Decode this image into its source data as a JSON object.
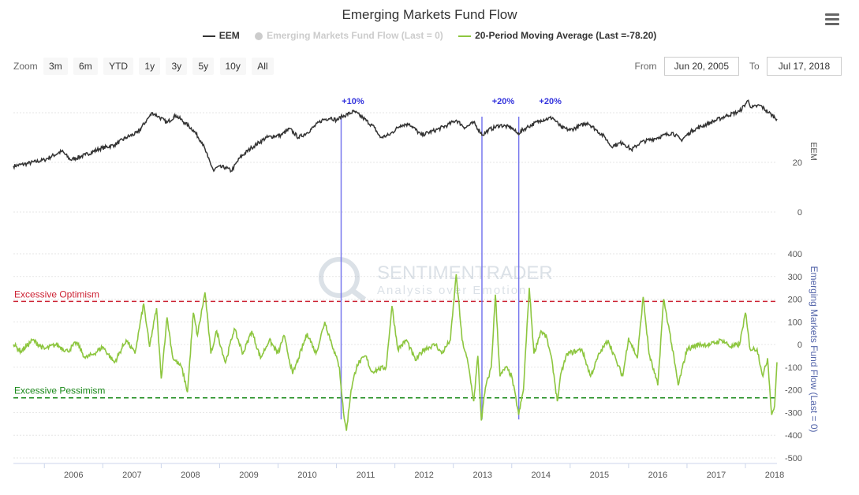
{
  "title": "Emerging Markets Fund Flow",
  "legend": [
    {
      "name": "EEM",
      "color": "#333333",
      "enabled": true
    },
    {
      "name": "Emerging Markets Fund Flow (Last = 0)",
      "color": "#cccccc",
      "enabled": false
    },
    {
      "name": "20-Period Moving Average (Last =-78.20)",
      "color": "#8dc63f",
      "enabled": true
    }
  ],
  "zoom": {
    "label": "Zoom",
    "buttons": [
      "3m",
      "6m",
      "YTD",
      "1y",
      "3y",
      "5y",
      "10y",
      "All"
    ]
  },
  "range": {
    "from_label": "From",
    "from_value": "Jun 20, 2005",
    "to_label": "To",
    "to_value": "Jul 17, 2018"
  },
  "watermark": {
    "name": "SENTIMENTRADER",
    "tagline": "Analysis over Emotion"
  },
  "chart_data": {
    "type": "line",
    "x_range": [
      2005.47,
      2018.54
    ],
    "x_ticks": [
      "2006",
      "2007",
      "2008",
      "2009",
      "2010",
      "2011",
      "2012",
      "2013",
      "2014",
      "2015",
      "2016",
      "2017",
      "2018"
    ],
    "upper_axis": {
      "label": "EEM",
      "ticks": [
        20,
        0
      ],
      "ylim": [
        0,
        50
      ]
    },
    "lower_axis": {
      "label": "Emerging Markets Fund Flow (Last = 0)",
      "ticks": [
        400,
        300,
        200,
        100,
        0,
        -100,
        -200,
        -300,
        -400,
        -500
      ],
      "ylim": [
        -500,
        400
      ]
    },
    "eem_series": [
      [
        2005.47,
        18.5
      ],
      [
        2005.7,
        19.5
      ],
      [
        2006.0,
        21
      ],
      [
        2006.3,
        24.5
      ],
      [
        2006.45,
        21
      ],
      [
        2006.7,
        23
      ],
      [
        2006.95,
        25.5
      ],
      [
        2007.2,
        27
      ],
      [
        2007.4,
        30
      ],
      [
        2007.6,
        32
      ],
      [
        2007.75,
        37
      ],
      [
        2007.85,
        40
      ],
      [
        2007.95,
        38.5
      ],
      [
        2008.1,
        36
      ],
      [
        2008.25,
        39
      ],
      [
        2008.4,
        36
      ],
      [
        2008.55,
        33
      ],
      [
        2008.7,
        28
      ],
      [
        2008.8,
        22
      ],
      [
        2008.9,
        16.5
      ],
      [
        2008.95,
        18
      ],
      [
        2009.1,
        18
      ],
      [
        2009.2,
        16.5
      ],
      [
        2009.35,
        22
      ],
      [
        2009.55,
        26
      ],
      [
        2009.8,
        30
      ],
      [
        2010.05,
        31
      ],
      [
        2010.2,
        33.5
      ],
      [
        2010.35,
        30
      ],
      [
        2010.5,
        32
      ],
      [
        2010.75,
        37
      ],
      [
        2010.9,
        38
      ],
      [
        2011.0,
        37
      ],
      [
        2011.1,
        38.5
      ],
      [
        2011.3,
        40.5
      ],
      [
        2011.45,
        38
      ],
      [
        2011.65,
        34
      ],
      [
        2011.75,
        30
      ],
      [
        2011.9,
        31
      ],
      [
        2012.1,
        35
      ],
      [
        2012.25,
        35.5
      ],
      [
        2012.45,
        31
      ],
      [
        2012.7,
        33
      ],
      [
        2012.9,
        35
      ],
      [
        2013.05,
        37
      ],
      [
        2013.2,
        34
      ],
      [
        2013.35,
        36
      ],
      [
        2013.5,
        31
      ],
      [
        2013.6,
        33
      ],
      [
        2013.8,
        35
      ],
      [
        2014.0,
        34
      ],
      [
        2014.1,
        31.5
      ],
      [
        2014.25,
        34
      ],
      [
        2014.5,
        37
      ],
      [
        2014.7,
        38
      ],
      [
        2014.85,
        34
      ],
      [
        2015.0,
        33
      ],
      [
        2015.3,
        36
      ],
      [
        2015.45,
        33
      ],
      [
        2015.6,
        30
      ],
      [
        2015.7,
        26.5
      ],
      [
        2015.9,
        28
      ],
      [
        2016.05,
        25
      ],
      [
        2016.2,
        28
      ],
      [
        2016.5,
        30
      ],
      [
        2016.75,
        32
      ],
      [
        2016.9,
        29
      ],
      [
        2017.1,
        33
      ],
      [
        2017.4,
        36
      ],
      [
        2017.7,
        39
      ],
      [
        2017.9,
        40.5
      ],
      [
        2018.05,
        45
      ],
      [
        2018.1,
        42
      ],
      [
        2018.25,
        43
      ],
      [
        2018.4,
        40
      ],
      [
        2018.54,
        37.5
      ]
    ],
    "ma_series": [
      [
        2005.47,
        0
      ],
      [
        2005.6,
        -30
      ],
      [
        2005.8,
        20
      ],
      [
        2006.0,
        -20
      ],
      [
        2006.2,
        0
      ],
      [
        2006.4,
        -30
      ],
      [
        2006.55,
        10
      ],
      [
        2006.7,
        -60
      ],
      [
        2006.85,
        -40
      ],
      [
        2007.0,
        -10
      ],
      [
        2007.2,
        -80
      ],
      [
        2007.4,
        20
      ],
      [
        2007.55,
        -40
      ],
      [
        2007.7,
        180
      ],
      [
        2007.8,
        -10
      ],
      [
        2007.92,
        160
      ],
      [
        2008.0,
        -150
      ],
      [
        2008.1,
        120
      ],
      [
        2008.2,
        -60
      ],
      [
        2008.35,
        -100
      ],
      [
        2008.45,
        -210
      ],
      [
        2008.55,
        140
      ],
      [
        2008.62,
        40
      ],
      [
        2008.75,
        230
      ],
      [
        2008.85,
        -40
      ],
      [
        2008.95,
        60
      ],
      [
        2009.1,
        -80
      ],
      [
        2009.25,
        70
      ],
      [
        2009.4,
        -40
      ],
      [
        2009.55,
        60
      ],
      [
        2009.7,
        -60
      ],
      [
        2009.85,
        20
      ],
      [
        2010.0,
        -40
      ],
      [
        2010.1,
        40
      ],
      [
        2010.25,
        -130
      ],
      [
        2010.35,
        -60
      ],
      [
        2010.5,
        50
      ],
      [
        2010.65,
        -40
      ],
      [
        2010.8,
        100
      ],
      [
        2010.95,
        -20
      ],
      [
        2011.05,
        -100
      ],
      [
        2011.12,
        -300
      ],
      [
        2011.17,
        -380
      ],
      [
        2011.25,
        -200
      ],
      [
        2011.35,
        -90
      ],
      [
        2011.5,
        -50
      ],
      [
        2011.6,
        -120
      ],
      [
        2011.7,
        -110
      ],
      [
        2011.85,
        -100
      ],
      [
        2011.95,
        170
      ],
      [
        2012.05,
        -20
      ],
      [
        2012.2,
        20
      ],
      [
        2012.35,
        -70
      ],
      [
        2012.5,
        -20
      ],
      [
        2012.7,
        0
      ],
      [
        2012.8,
        -40
      ],
      [
        2012.95,
        20
      ],
      [
        2013.05,
        310
      ],
      [
        2013.15,
        20
      ],
      [
        2013.25,
        -80
      ],
      [
        2013.35,
        -250
      ],
      [
        2013.42,
        -50
      ],
      [
        2013.48,
        -335
      ],
      [
        2013.55,
        -190
      ],
      [
        2013.65,
        -100
      ],
      [
        2013.72,
        220
      ],
      [
        2013.8,
        -140
      ],
      [
        2013.9,
        -100
      ],
      [
        2014.0,
        -140
      ],
      [
        2014.12,
        -310
      ],
      [
        2014.2,
        -200
      ],
      [
        2014.3,
        250
      ],
      [
        2014.38,
        -40
      ],
      [
        2014.5,
        60
      ],
      [
        2014.6,
        30
      ],
      [
        2014.7,
        -90
      ],
      [
        2014.78,
        -250
      ],
      [
        2014.85,
        -120
      ],
      [
        2014.95,
        -40
      ],
      [
        2015.1,
        -30
      ],
      [
        2015.2,
        -20
      ],
      [
        2015.35,
        -140
      ],
      [
        2015.5,
        -40
      ],
      [
        2015.65,
        20
      ],
      [
        2015.8,
        -80
      ],
      [
        2015.9,
        -140
      ],
      [
        2016.0,
        30
      ],
      [
        2016.15,
        -60
      ],
      [
        2016.25,
        210
      ],
      [
        2016.35,
        -40
      ],
      [
        2016.5,
        -180
      ],
      [
        2016.6,
        200
      ],
      [
        2016.7,
        60
      ],
      [
        2016.85,
        -180
      ],
      [
        2017.0,
        -20
      ],
      [
        2017.2,
        0
      ],
      [
        2017.4,
        0
      ],
      [
        2017.6,
        20
      ],
      [
        2017.75,
        -10
      ],
      [
        2017.9,
        0
      ],
      [
        2018.0,
        140
      ],
      [
        2018.08,
        -20
      ],
      [
        2018.2,
        -20
      ],
      [
        2018.3,
        -140
      ],
      [
        2018.38,
        -60
      ],
      [
        2018.45,
        -310
      ],
      [
        2018.5,
        -270
      ],
      [
        2018.54,
        -78.2
      ]
    ],
    "reference_lines": [
      {
        "label": "Excessive Optimism",
        "value": 190,
        "color": "#cc2233"
      },
      {
        "label": "Excessive Pessimism",
        "value": -235,
        "color": "#1a8a1a"
      }
    ],
    "annotations": [
      {
        "text": "+10%",
        "x": 2011.08
      },
      {
        "text": "+20%",
        "x": 2013.49
      },
      {
        "text": "+20%",
        "x": 2014.12
      }
    ]
  }
}
